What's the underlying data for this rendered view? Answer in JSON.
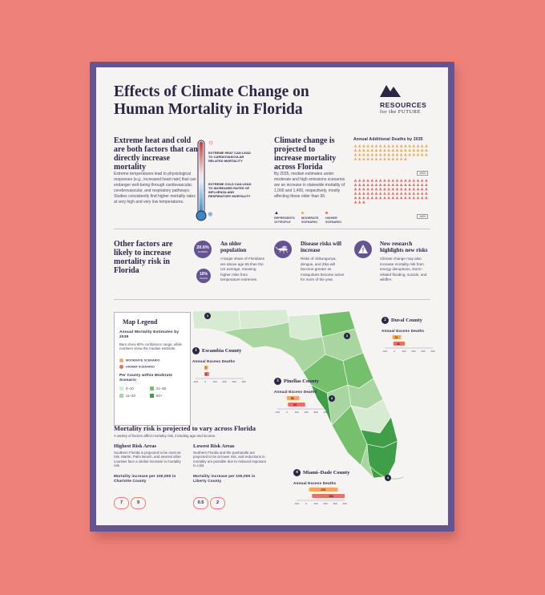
{
  "title": "Effects of Climate Change on Human Mortality in Florida",
  "logo": {
    "line1": "RESOURCES",
    "line2": "for the FUTURE"
  },
  "heat_section": {
    "heading": "Extreme heat and cold are both factors that can directly increase mortality",
    "body": "Extreme temperatures lead to physiological responses (e.g., increased heart rate) that can endanger well-being through cardiovascular, cerebrovascular, and respiratory pathways. Studies consistently find higher mortality rates at very high and very low temperatures.",
    "heat_label": "EXTREME HEAT CAN LEAD TO CARDIOVASCULAR RELATED MORTALITY",
    "cold_label": "EXTREME COLD CAN LEAD TO INCREASED RATES OF INFLUENZA AND RESPIRATORY MORTALITY"
  },
  "projection_section": {
    "heading": "Climate change is projected to increase mortality across Florida",
    "body": "By 2035, median estimates under moderate and high emissions scenarios are an increase in statewide mortality of 1,000 and 1,400, respectively, mostly affecting those older than 65.",
    "chart_title": "Annual Additional Deaths by 2035",
    "moderate_value": "1000",
    "high_value": "1400",
    "legend_people": "REPRESENTS 15 PEOPLE",
    "legend_moderate": "MODERATE SCENARIO",
    "legend_high": "HIGHER SCENARIO",
    "moderate_color": "#f2a85c",
    "high_color": "#e4716a"
  },
  "other_factors": {
    "heading": "Other factors are likely to increase mortality risk in Florida",
    "older": {
      "title": "An older population",
      "pct_fl": "20.6%",
      "pct_fl_label": "FLORIDA",
      "pct_us": "16%",
      "pct_us_label": "US AVG",
      "body": "A larger share of Floridians are above age 65 than the US average, meaning higher risks from temperature extremes."
    },
    "disease": {
      "title": "Disease risks will increase",
      "body": "Risks of chikungunya, dengue, and Zika will become greater as mosquitoes become active for more of the year."
    },
    "research": {
      "title": "New research highlights new risks",
      "body": "Climate change may also increase mortality risk from energy disruptions, storm-related flooding, suicide, and wildfire."
    }
  },
  "legend": {
    "title": "Map Legend",
    "subtitle": "Annual Mortality Estimates by 2035",
    "note": "Bars show 90% confidence range, while numbers show the median estimate.",
    "moderate": "MODERATE SCENARIO",
    "higher": "HIGHER SCENARIO",
    "per_county": "Per County within Moderate Scenario",
    "bins": [
      "0–10",
      "11–20",
      "21–50",
      "50+"
    ],
    "bin_colors": [
      "#d6ebd2",
      "#a9d6a0",
      "#76bf6c",
      "#3f9e47"
    ]
  },
  "counties": [
    {
      "num": "1",
      "name": "Escambia County",
      "sub": "Annual Excess Deaths",
      "moderate": "7",
      "high": "9"
    },
    {
      "num": "2",
      "name": "Duval County",
      "sub": "Annual Excess Deaths",
      "moderate": "21",
      "high": "42"
    },
    {
      "num": "3",
      "name": "Pinellas County",
      "sub": "Annual Excess Deaths",
      "moderate": "56",
      "high": "83"
    },
    {
      "num": "4",
      "name": "Miami–Dade County",
      "sub": "Annual Excess Deaths",
      "moderate": "176",
      "high": "261"
    }
  ],
  "axis_ticks": [
    "-100",
    "0",
    "100",
    "200",
    "300",
    "400"
  ],
  "vary_section": {
    "heading": "Mortality risk is projected to vary across Florida",
    "sub": "A variety of factors affect mortality risk, including age and income.",
    "highest_title": "Highest Risk Areas",
    "highest_body": "Southern Florida is projected to be most at-risk. Martin, Palm Beach, and several other counties face a similar increase in mortality risk.",
    "highest_metric": "Mortality increase per 100,000 in Charlotte County",
    "highest_values": [
      "7",
      "9"
    ],
    "lowest_title": "Lowest Risk Areas",
    "lowest_body": "Northern Florida and the panhandle are projected to be at lower risk, and reductions in mortality are possible due to reduced exposure to cold.",
    "lowest_metric": "Mortality increase per 100,000 in Liberty County",
    "lowest_values": [
      "0.5",
      "2"
    ]
  }
}
